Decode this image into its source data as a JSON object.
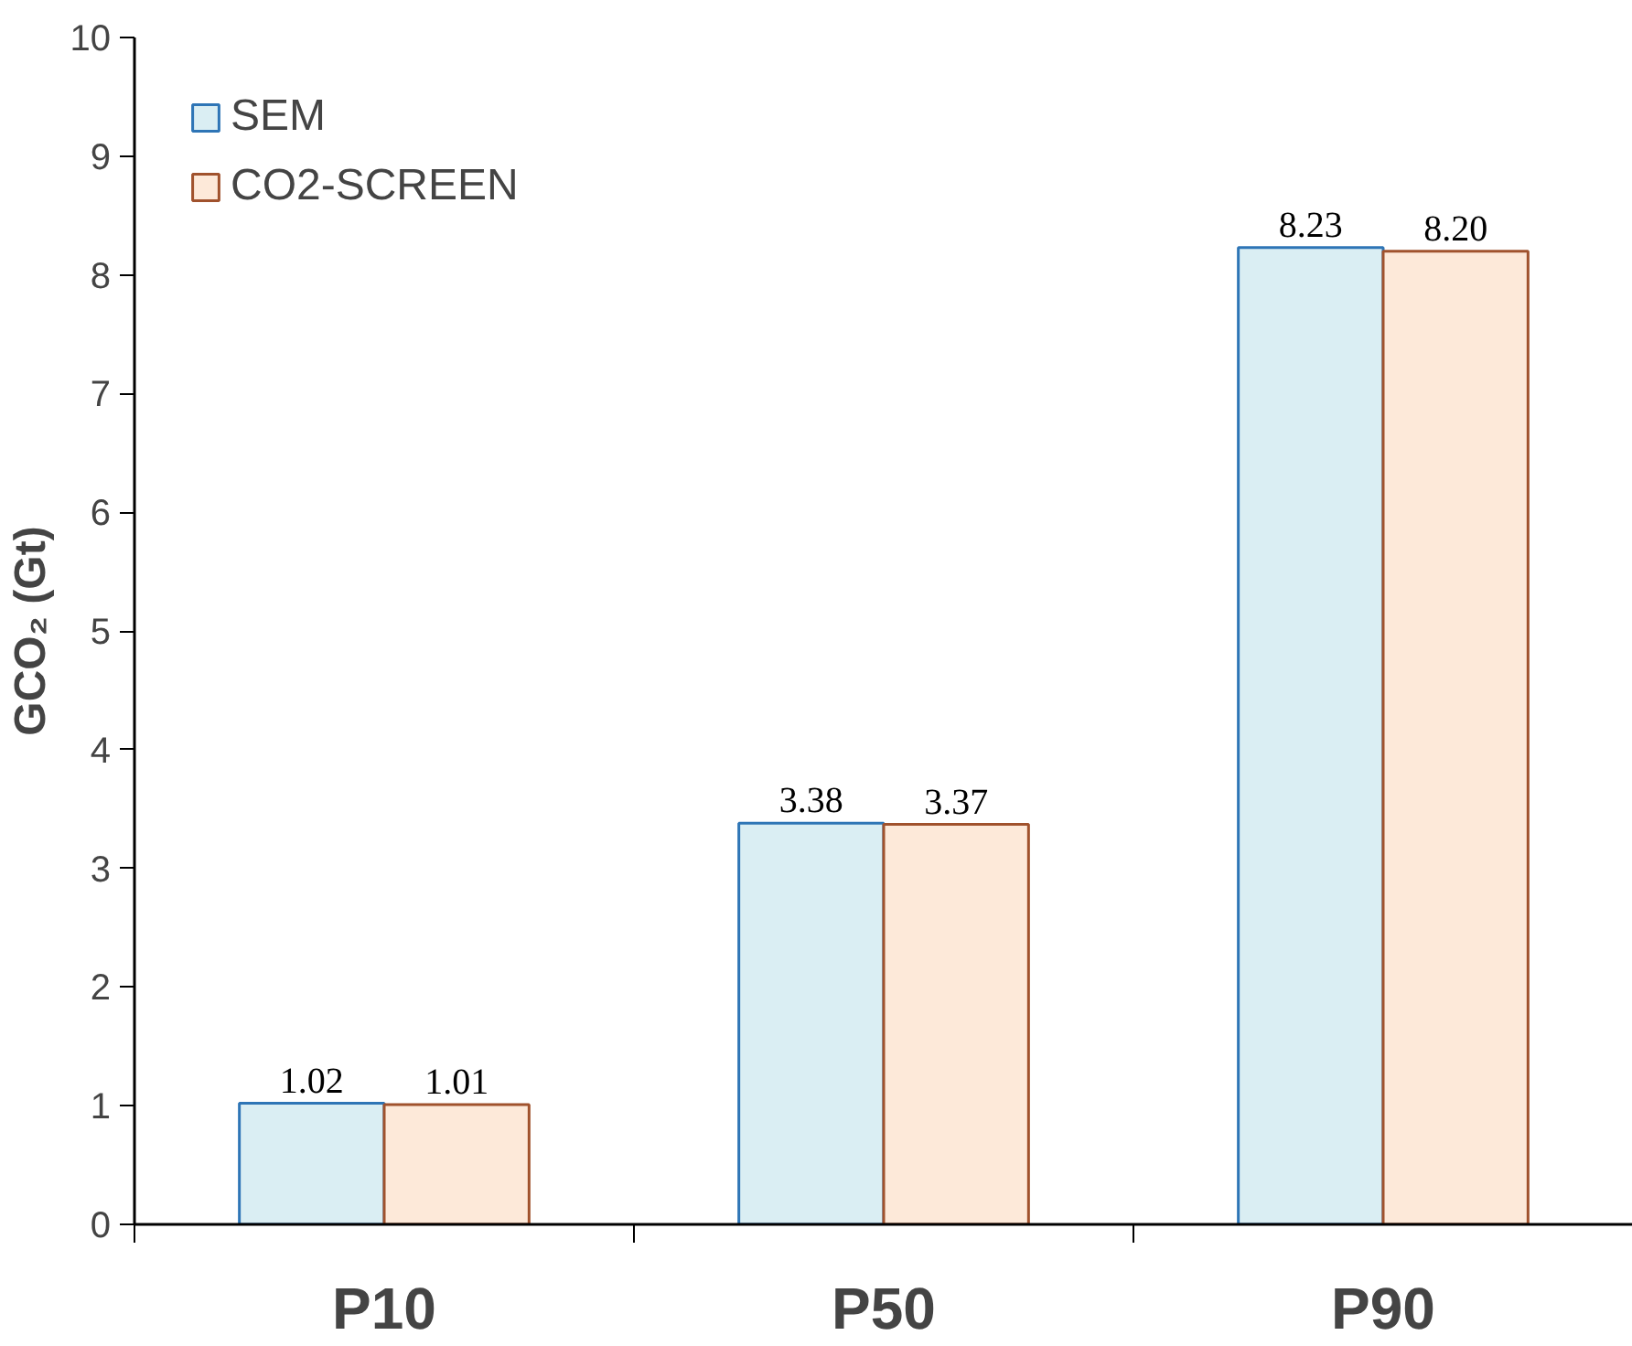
{
  "chart_data": {
    "type": "bar",
    "ylabel": "GCO₂ (Gt)",
    "categories": [
      "P10",
      "P50",
      "P90"
    ],
    "series": [
      {
        "name": "SEM",
        "color": "#daeef3",
        "values": [
          1.02,
          3.38,
          8.23
        ],
        "value_labels": [
          "1.02",
          "3.38",
          "8.23"
        ]
      },
      {
        "name": "CO2-SCREEN",
        "color": "#fde9d9",
        "values": [
          1.01,
          3.37,
          8.2
        ],
        "value_labels": [
          "1.01",
          "3.37",
          "8.20"
        ]
      }
    ],
    "ylim": [
      0,
      10
    ],
    "yticks": [
      0,
      1,
      2,
      3,
      4,
      5,
      6,
      7,
      8,
      9,
      10
    ],
    "grid": false,
    "legend": "top left"
  }
}
